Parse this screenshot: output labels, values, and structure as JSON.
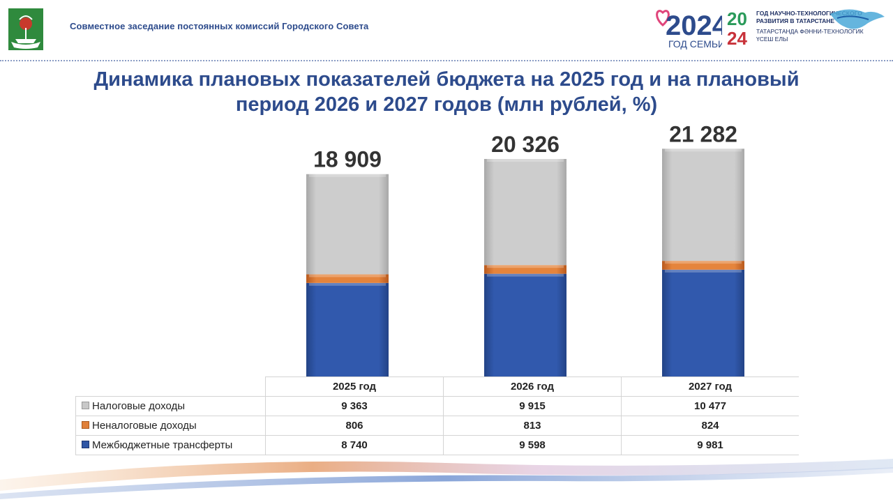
{
  "header": {
    "org_text": "Совместное заседание постоянных комиссий Городского Совета",
    "brand_family": {
      "year": "2024",
      "caption": "ГОД СЕМЬИ"
    },
    "brand_tech": {
      "year_top": "20",
      "year_bottom": "24",
      "line1": "ГОД НАУЧНО-ТЕХНОЛОГИЧЕСКОГО",
      "line2": "РАЗВИТИЯ В ТАТАРСТАНЕ",
      "line3": "ТАТАРСТАНДА ФӘННИ-ТЕХНОЛОГИК",
      "line4": "ҮСЕШ ЕЛЫ"
    }
  },
  "chart_data": {
    "type": "bar",
    "stacked": true,
    "title": "Динамика плановых показателей бюджета на 2025 год и на плановый период 2026 и 2027 годов (млн рублей, %)",
    "categories": [
      "2025 год",
      "2026 год",
      "2027 год"
    ],
    "totals": [
      18909,
      20326,
      21282
    ],
    "total_labels": [
      "18 909",
      "20 326",
      "21 282"
    ],
    "series": [
      {
        "name": "Межбюджетные трансферты",
        "values": [
          8740,
          9598,
          9981
        ],
        "labels": [
          "8 740",
          "9 598",
          "9 981"
        ],
        "color": "#2f56a5"
      },
      {
        "name": "Неналоговые доходы",
        "values": [
          806,
          813,
          824
        ],
        "labels": [
          "806",
          "813",
          "824"
        ],
        "color": "#e0803a"
      },
      {
        "name": "Налоговые доходы",
        "values": [
          9363,
          9915,
          10477
        ],
        "labels": [
          "9 363",
          "9 915",
          "10 477"
        ],
        "color": "#c8c8c8"
      }
    ],
    "legend": "data-table-below",
    "grid": false
  },
  "table": {
    "header": [
      "2025 год",
      "2026 год",
      "2027 год"
    ],
    "rows": [
      {
        "label": "Налоговые доходы",
        "color": "#c8c8c8",
        "values": [
          "9 363",
          "9 915",
          "10 477"
        ]
      },
      {
        "label": "Неналоговые доходы",
        "color": "#e0803a",
        "values": [
          "806",
          "813",
          "824"
        ]
      },
      {
        "label": "Межбюджетные трансферты",
        "color": "#2f56a5",
        "values": [
          "8 740",
          "9 598",
          "9 981"
        ]
      }
    ]
  }
}
